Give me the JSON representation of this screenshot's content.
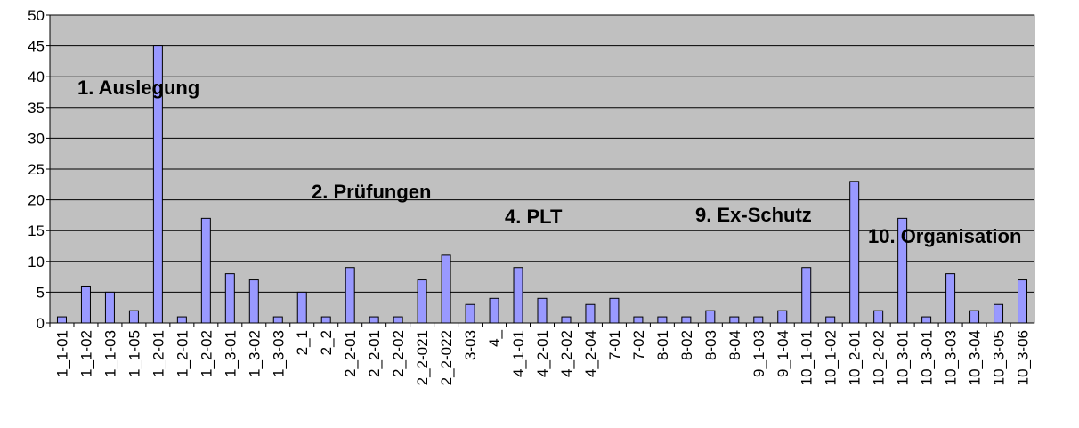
{
  "chart_data": {
    "type": "bar",
    "categories": [
      "1_1-01",
      "1_1-02",
      "1_1-03",
      "1_1-05",
      "1_2-01",
      "1_2-01",
      "1_2-02",
      "1_3-01",
      "1_3-02",
      "1_3-03",
      "2_1",
      "2_2",
      "2_2-01",
      "2_2-01",
      "2_2-02",
      "2_2-021",
      "2_2-022",
      "3-03",
      "4_",
      "4_1-01",
      "4_2-01",
      "4_2-02",
      "4_2-04",
      "7-01",
      "7-02",
      "8-01",
      "8-02",
      "8-03",
      "8-04",
      "9_1-03",
      "9_1-04",
      "10_1-01",
      "10_1-02",
      "10_2-01",
      "10_2-02",
      "10_3-01",
      "10_3-01",
      "10_3-03",
      "10_3-04",
      "10_3-05",
      "10_3-06"
    ],
    "values": [
      1,
      6,
      5,
      2,
      45,
      1,
      17,
      8,
      7,
      1,
      5,
      1,
      9,
      1,
      1,
      7,
      11,
      3,
      4,
      9,
      4,
      1,
      3,
      4,
      1,
      1,
      1,
      2,
      1,
      1,
      2,
      9,
      1,
      23,
      2,
      17,
      1,
      8,
      2,
      3,
      7
    ],
    "color": "#9999ff",
    "ylim": [
      0,
      50
    ],
    "yticks": [
      0,
      5,
      10,
      15,
      20,
      25,
      30,
      35,
      40,
      45,
      50
    ],
    "grid": true,
    "annotations": [
      "1. Auslegung",
      "2. Prüfungen",
      "4. PLT",
      "9. Ex-Schutz",
      "10. Organisation"
    ]
  }
}
